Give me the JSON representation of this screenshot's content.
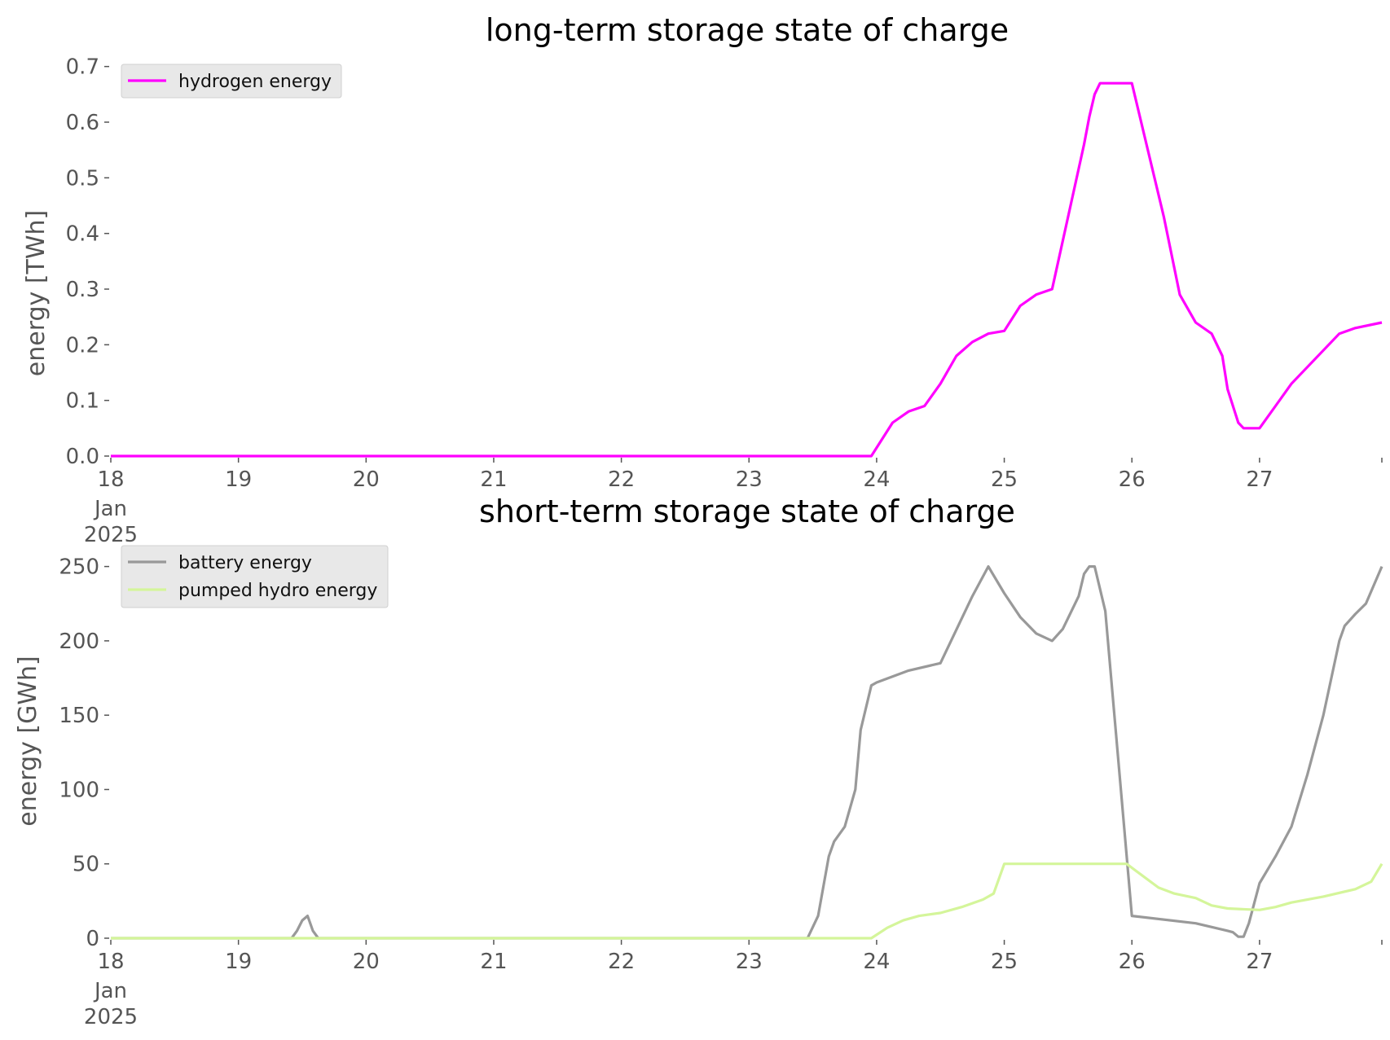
{
  "chart_data": [
    {
      "type": "line",
      "title": "long-term storage state of charge",
      "xlabel": "",
      "ylabel": "energy [TWh]",
      "x_ticks": [
        "18",
        "19",
        "20",
        "21",
        "22",
        "23",
        "24",
        "25",
        "26",
        "27"
      ],
      "x_first_tick_sub": [
        "Jan",
        "2025"
      ],
      "y_ticks": [
        "0.0",
        "0.1",
        "0.2",
        "0.3",
        "0.4",
        "0.5",
        "0.6",
        "0.7"
      ],
      "xlim": [
        "2025-01-18",
        "2025-01-27 23:00"
      ],
      "ylim": [
        0,
        0.72
      ],
      "grid": false,
      "legend": "top-left",
      "series": [
        {
          "name": "hydrogen energy",
          "color": "#ff00ff",
          "x": [
            "2025-01-18 00:00",
            "2025-01-23 23:00",
            "2025-01-24 03:00",
            "2025-01-24 06:00",
            "2025-01-24 09:00",
            "2025-01-24 12:00",
            "2025-01-24 15:00",
            "2025-01-24 18:00",
            "2025-01-24 21:00",
            "2025-01-25 00:00",
            "2025-01-25 03:00",
            "2025-01-25 06:00",
            "2025-01-25 09:00",
            "2025-01-25 12:00",
            "2025-01-25 15:00",
            "2025-01-25 16:00",
            "2025-01-25 17:00",
            "2025-01-25 18:00",
            "2025-01-26 00:00",
            "2025-01-26 03:00",
            "2025-01-26 06:00",
            "2025-01-26 09:00",
            "2025-01-26 12:00",
            "2025-01-26 15:00",
            "2025-01-26 17:00",
            "2025-01-26 18:00",
            "2025-01-26 20:00",
            "2025-01-26 21:00",
            "2025-01-27 00:00",
            "2025-01-27 03:00",
            "2025-01-27 06:00",
            "2025-01-27 09:00",
            "2025-01-27 12:00",
            "2025-01-27 15:00",
            "2025-01-27 18:00",
            "2025-01-27 23:00"
          ],
          "values": [
            0.0,
            0.0,
            0.06,
            0.08,
            0.09,
            0.13,
            0.18,
            0.205,
            0.22,
            0.225,
            0.27,
            0.29,
            0.3,
            0.43,
            0.56,
            0.61,
            0.65,
            0.67,
            0.67,
            0.55,
            0.43,
            0.29,
            0.24,
            0.22,
            0.18,
            0.12,
            0.06,
            0.05,
            0.05,
            0.09,
            0.13,
            0.16,
            0.19,
            0.22,
            0.23,
            0.24
          ]
        }
      ]
    },
    {
      "type": "line",
      "title": "short-term storage state of charge",
      "xlabel": "",
      "ylabel": "energy [GWh]",
      "x_ticks": [
        "18",
        "19",
        "20",
        "21",
        "22",
        "23",
        "24",
        "25",
        "26",
        "27"
      ],
      "x_first_tick_sub": [
        "Jan",
        "2025"
      ],
      "y_ticks": [
        "0",
        "50",
        "100",
        "150",
        "200",
        "250"
      ],
      "xlim": [
        "2025-01-18",
        "2025-01-27 23:00"
      ],
      "ylim": [
        0,
        258
      ],
      "grid": false,
      "legend": "top-left",
      "series": [
        {
          "name": "battery energy",
          "color": "#999999",
          "x": [
            "2025-01-18 00:00",
            "2025-01-19 10:00",
            "2025-01-19 11:00",
            "2025-01-19 12:00",
            "2025-01-19 13:00",
            "2025-01-19 14:00",
            "2025-01-19 15:00",
            "2025-01-23 11:00",
            "2025-01-23 13:00",
            "2025-01-23 15:00",
            "2025-01-23 16:00",
            "2025-01-23 18:00",
            "2025-01-23 20:00",
            "2025-01-23 21:00",
            "2025-01-23 23:00",
            "2025-01-24 00:00",
            "2025-01-24 06:00",
            "2025-01-24 12:00",
            "2025-01-24 18:00",
            "2025-01-24 21:00",
            "2025-01-25 00:00",
            "2025-01-25 03:00",
            "2025-01-25 06:00",
            "2025-01-25 09:00",
            "2025-01-25 11:00",
            "2025-01-25 14:00",
            "2025-01-25 15:00",
            "2025-01-25 16:00",
            "2025-01-25 17:00",
            "2025-01-25 19:00",
            "2025-01-26 00:00",
            "2025-01-26 12:00",
            "2025-01-26 18:00",
            "2025-01-26 19:00",
            "2025-01-26 20:00",
            "2025-01-26 21:00",
            "2025-01-26 22:00",
            "2025-01-27 00:00",
            "2025-01-27 03:00",
            "2025-01-27 06:00",
            "2025-01-27 09:00",
            "2025-01-27 12:00",
            "2025-01-27 15:00",
            "2025-01-27 16:00",
            "2025-01-27 18:00",
            "2025-01-27 20:00",
            "2025-01-27 23:00"
          ],
          "values": [
            0,
            0,
            5,
            12,
            15,
            5,
            0,
            0,
            15,
            55,
            65,
            75,
            100,
            140,
            170,
            172,
            180,
            185,
            230,
            250,
            232,
            216,
            205,
            200,
            208,
            230,
            245,
            250,
            250,
            220,
            15,
            10,
            5,
            4,
            1,
            1,
            10,
            37,
            55,
            75,
            110,
            150,
            200,
            210,
            218,
            225,
            250
          ]
        },
        {
          "name": "pumped hydro energy",
          "color": "#d4f59a",
          "x": [
            "2025-01-18 00:00",
            "2025-01-23 23:00",
            "2025-01-24 02:00",
            "2025-01-24 05:00",
            "2025-01-24 08:00",
            "2025-01-24 12:00",
            "2025-01-24 16:00",
            "2025-01-24 20:00",
            "2025-01-24 22:00",
            "2025-01-25 00:00",
            "2025-01-25 12:00",
            "2025-01-25 23:00",
            "2025-01-26 02:00",
            "2025-01-26 05:00",
            "2025-01-26 08:00",
            "2025-01-26 12:00",
            "2025-01-26 15:00",
            "2025-01-26 18:00",
            "2025-01-27 00:00",
            "2025-01-27 03:00",
            "2025-01-27 06:00",
            "2025-01-27 12:00",
            "2025-01-27 18:00",
            "2025-01-27 21:00",
            "2025-01-27 23:00"
          ],
          "values": [
            0,
            0,
            7,
            12,
            15,
            17,
            21,
            26,
            30,
            50,
            50,
            50,
            42,
            34,
            30,
            27,
            22,
            20,
            19,
            21,
            24,
            28,
            33,
            38,
            50
          ]
        }
      ]
    }
  ]
}
